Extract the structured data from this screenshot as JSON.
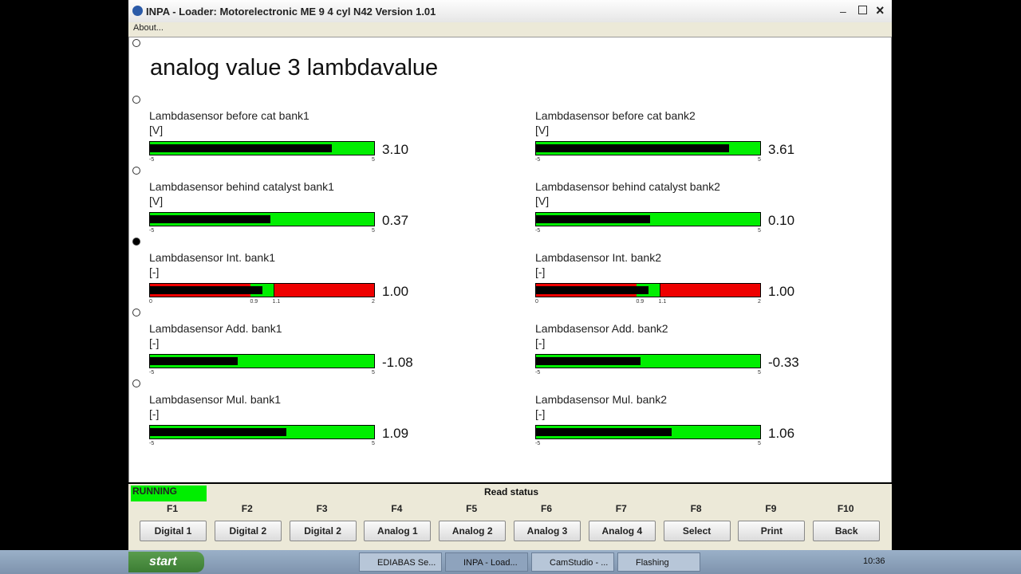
{
  "window": {
    "title": "INPA - Loader:  Motorelectronic ME 9  4 cyl N42 Version 1.01",
    "menu": [
      "About..."
    ]
  },
  "screen": {
    "heading": "analog value 3 lambdavalue",
    "gauges": [
      {
        "label": "Lambdasensor before cat bank1",
        "unit": "[V]",
        "value": 3.1,
        "value_label": "3.10",
        "ticks": [
          -5,
          5
        ]
      },
      {
        "label": "Lambdasensor before cat bank2",
        "unit": "[V]",
        "value": 3.61,
        "value_label": "3.61",
        "ticks": [
          -5,
          5
        ]
      },
      {
        "label": "Lambdasensor behind catalyst bank1",
        "unit": "[V]",
        "value": 0.37,
        "value_label": "0.37",
        "ticks": [
          -5,
          5
        ]
      },
      {
        "label": "Lambdasensor behind catalyst bank2",
        "unit": "[V]",
        "value": 0.1,
        "value_label": "0.10",
        "ticks": [
          -5,
          5
        ]
      },
      {
        "label": "Lambdasensor Int. bank1",
        "unit": "[-]",
        "value": 1,
        "value_label": "1.00",
        "ticks": [
          0,
          0.9,
          1.1,
          2
        ]
      },
      {
        "label": "Lambdasensor Int. bank2",
        "unit": "[-]",
        "value": 1,
        "value_label": "1.00",
        "ticks": [
          0,
          0.9,
          1.1,
          2
        ]
      },
      {
        "label": "Lambdasensor Add. bank1",
        "unit": "[-]",
        "value": -1.08,
        "value_label": "-1.08",
        "ticks": [
          -5,
          5
        ]
      },
      {
        "label": "Lambdasensor Add. bank2",
        "unit": "[-]",
        "value": -0.33,
        "value_label": "-0.33",
        "ticks": [
          -5,
          5
        ]
      },
      {
        "label": "Lambdasensor Mul. bank1",
        "unit": "[-]",
        "value": 1.09,
        "value_label": "1.09",
        "ticks": [
          -5,
          5
        ]
      },
      {
        "label": "Lambdasensor Mul. bank2",
        "unit": "[-]",
        "value": 1.06,
        "value_label": "1.06",
        "ticks": [
          -5,
          5
        ]
      }
    ]
  },
  "status": {
    "state": "RUNNING",
    "message": "Read status"
  },
  "function_keys": [
    {
      "key": "F1",
      "label": "Digital 1"
    },
    {
      "key": "F2",
      "label": "Digital 2"
    },
    {
      "key": "F3",
      "label": "Digital 2"
    },
    {
      "key": "F4",
      "label": "Analog 1"
    },
    {
      "key": "F5",
      "label": "Analog 2"
    },
    {
      "key": "F6",
      "label": "Analog 3"
    },
    {
      "key": "F7",
      "label": "Analog 4"
    },
    {
      "key": "F8",
      "label": "Select"
    },
    {
      "key": "F9",
      "label": "Print"
    },
    {
      "key": "F10",
      "label": "Back"
    }
  ],
  "taskbar": {
    "start": "start",
    "tasks": [
      "EDIABAS Se...",
      "INPA - Load...",
      "CamStudio - ...",
      "Flashing"
    ],
    "clock": "10:36"
  }
}
